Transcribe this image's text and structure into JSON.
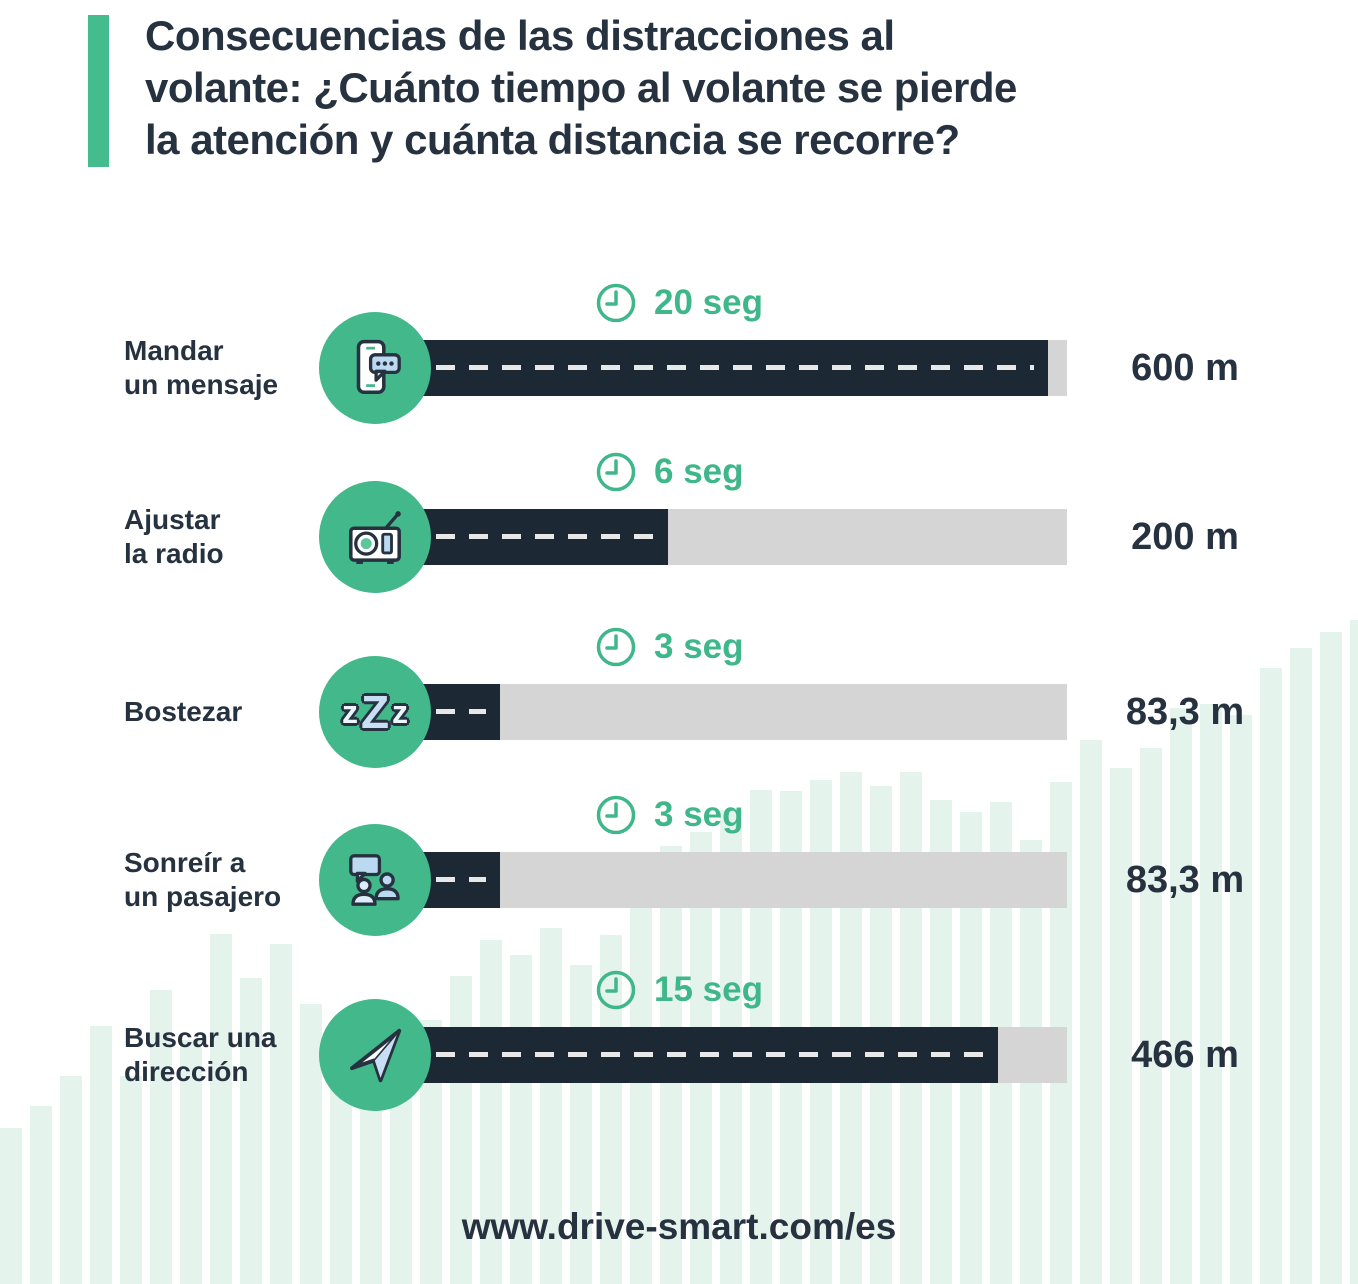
{
  "title": {
    "text": "Consecuencias de las distracciones al\nvolante: ¿Cuánto tiempo al volante se pierde\nla atención y cuánta distancia se recorre?"
  },
  "footer": {
    "url": "www.drive-smart.com/es"
  },
  "colors": {
    "accent_green": "#45bc8d",
    "circle_green": "#42b88b",
    "time_green": "#3fb78b",
    "navy_text": "#26323f",
    "road_navy": "#1c2834",
    "track_gray": "#d5d5d5",
    "mint_background": "#e4f3eb",
    "icon_light_blue": "#bcd9f2"
  },
  "chart_data": {
    "type": "bar",
    "title": "Consecuencias de las distracciones al volante: ¿Cuánto tiempo al volante se pierde la atención y cuánta distancia se recorre?",
    "xlabel": "",
    "ylabel": "",
    "unit_time": "seg",
    "unit_distance": "m",
    "legend_position": "none",
    "grid": false,
    "rows": [
      {
        "label": "Mandar\nun mensaje",
        "icon": "phone-message-icon",
        "time": "20 seg",
        "seconds": 20,
        "distance": "600 m",
        "meters": 600,
        "bar_pct": 97.2
      },
      {
        "label": "Ajustar\nla radio",
        "icon": "radio-icon",
        "time": "6 seg",
        "seconds": 6,
        "distance": "200 m",
        "meters": 200,
        "bar_pct": 42.1
      },
      {
        "label": "Bostezar",
        "icon": "yawn-zzz-icon",
        "time": "3 seg",
        "seconds": 3,
        "distance": "83,3 m",
        "meters": 83.3,
        "bar_pct": 17.7,
        "zzz": {
          "l": "z",
          "m": "Z",
          "r": "z"
        }
      },
      {
        "label": "Sonreír a\nun pasajero",
        "icon": "passenger-smile-icon",
        "time": "3 seg",
        "seconds": 3,
        "distance": "83,3 m",
        "meters": 83.3,
        "bar_pct": 17.7
      },
      {
        "label": "Buscar una\ndirección",
        "icon": "navigation-arrow-icon",
        "time": "15 seg",
        "seconds": 15,
        "distance": "466 m",
        "meters": 466,
        "bar_pct": 90.0
      }
    ],
    "background_skyline_heights": [
      156,
      178,
      208,
      258,
      208,
      294,
      244,
      350,
      306,
      340,
      280,
      250,
      270,
      236,
      264,
      308,
      344,
      329,
      356,
      319,
      349,
      379,
      438,
      452,
      474,
      494,
      493,
      504,
      512,
      498,
      512,
      484,
      472,
      482,
      444,
      502,
      544,
      516,
      536,
      576,
      580,
      569,
      616,
      636,
      652,
      664
    ]
  }
}
